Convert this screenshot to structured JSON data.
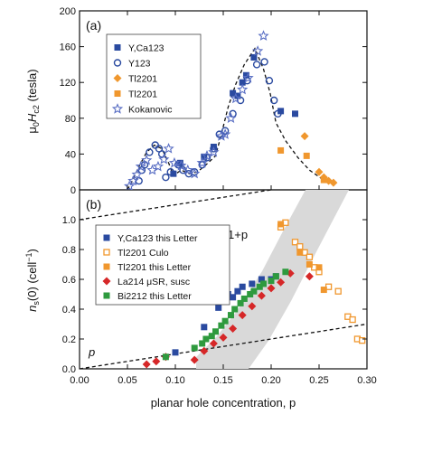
{
  "chart_data": [
    {
      "panel": "(a)",
      "type": "scatter",
      "ylabel_parts": [
        "μ",
        "0",
        "H",
        "c2",
        " (tesla)"
      ],
      "xlim": [
        0.0,
        0.3
      ],
      "ylim": [
        0,
        200
      ],
      "yticks": [
        "0",
        "40",
        "80",
        "120",
        "160",
        "200"
      ],
      "legend": [
        "Y,Ca123",
        "Y123",
        "Tl2201",
        "Tl2201",
        "Kokanovic"
      ],
      "guide_line": [
        [
          0.05,
          0
        ],
        [
          0.055,
          10
        ],
        [
          0.062,
          26
        ],
        [
          0.07,
          42
        ],
        [
          0.078,
          50
        ],
        [
          0.086,
          46
        ],
        [
          0.093,
          30
        ],
        [
          0.098,
          16
        ],
        [
          0.106,
          22
        ],
        [
          0.115,
          18
        ],
        [
          0.123,
          20
        ],
        [
          0.132,
          28
        ],
        [
          0.142,
          38
        ],
        [
          0.148,
          62
        ],
        [
          0.155,
          92
        ],
        [
          0.163,
          118
        ],
        [
          0.172,
          140
        ],
        [
          0.183,
          158
        ],
        [
          0.192,
          135
        ],
        [
          0.199,
          108
        ],
        [
          0.205,
          75
        ],
        [
          0.215,
          55
        ],
        [
          0.228,
          36
        ],
        [
          0.24,
          22
        ],
        [
          0.252,
          13
        ],
        [
          0.262,
          8
        ]
      ],
      "series": [
        {
          "name": "Y,Ca123",
          "color": "#2a4aa0",
          "marker": "square",
          "points": [
            [
              0.098,
              18
            ],
            [
              0.105,
              30
            ],
            [
              0.13,
              37
            ],
            [
              0.14,
              48
            ],
            [
              0.16,
              108
            ],
            [
              0.165,
              105
            ],
            [
              0.17,
              120
            ],
            [
              0.174,
              128
            ],
            [
              0.182,
              148
            ],
            [
              0.21,
              88
            ],
            [
              0.225,
              85
            ]
          ]
        },
        {
          "name": "Y123",
          "color": "#2a4aa0",
          "marker": "circle",
          "points": [
            [
              0.062,
              10
            ],
            [
              0.065,
              22
            ],
            [
              0.068,
              28
            ],
            [
              0.073,
              42
            ],
            [
              0.079,
              50
            ],
            [
              0.083,
              46
            ],
            [
              0.086,
              40
            ],
            [
              0.09,
              14
            ],
            [
              0.095,
              20
            ],
            [
              0.103,
              28
            ],
            [
              0.108,
              22
            ],
            [
              0.114,
              18
            ],
            [
              0.12,
              20
            ],
            [
              0.128,
              28
            ],
            [
              0.133,
              36
            ],
            [
              0.14,
              46
            ],
            [
              0.146,
              62
            ],
            [
              0.152,
              66
            ],
            [
              0.16,
              85
            ],
            [
              0.168,
              100
            ],
            [
              0.175,
              122
            ],
            [
              0.185,
              140
            ],
            [
              0.193,
              143
            ],
            [
              0.198,
              122
            ],
            [
              0.203,
              100
            ],
            [
              0.207,
              85
            ]
          ]
        },
        {
          "name": "Tl2201",
          "color": "#f0972e",
          "marker": "diamond",
          "points": [
            [
              0.235,
              60
            ],
            [
              0.25,
              20
            ],
            [
              0.255,
              14
            ],
            [
              0.26,
              10
            ],
            [
              0.265,
              8
            ]
          ]
        },
        {
          "name": "Tl2201",
          "color": "#f0972e",
          "marker": "square",
          "points": [
            [
              0.21,
              44
            ],
            [
              0.237,
              38
            ],
            [
              0.255,
              11
            ]
          ]
        },
        {
          "name": "Kokanovic",
          "color": "#5a6fc4",
          "marker": "star",
          "points": [
            [
              0.052,
              4
            ],
            [
              0.056,
              10
            ],
            [
              0.06,
              17
            ],
            [
              0.064,
              26
            ],
            [
              0.07,
              33
            ],
            [
              0.076,
              22
            ],
            [
              0.082,
              26
            ],
            [
              0.088,
              34
            ],
            [
              0.093,
              46
            ],
            [
              0.099,
              30
            ],
            [
              0.106,
              27
            ],
            [
              0.113,
              22
            ],
            [
              0.12,
              18
            ],
            [
              0.128,
              30
            ],
            [
              0.133,
              38
            ],
            [
              0.14,
              42
            ],
            [
              0.148,
              60
            ],
            [
              0.152,
              62
            ],
            [
              0.158,
              80
            ],
            [
              0.163,
              102
            ],
            [
              0.17,
              112
            ],
            [
              0.176,
              125
            ],
            [
              0.186,
              155
            ],
            [
              0.192,
              172
            ]
          ]
        }
      ]
    },
    {
      "panel": "(b)",
      "type": "scatter",
      "ylabel_parts": [
        "n",
        "s",
        "(0)  (cell",
        "−1",
        ")"
      ],
      "xlabel": "planar hole concentration, p",
      "xlim": [
        0.0,
        0.3
      ],
      "ylim": [
        0.0,
        1.2
      ],
      "xticks": [
        "0.00",
        "0.05",
        "0.10",
        "0.15",
        "0.20",
        "0.25",
        "0.30"
      ],
      "yticks": [
        "0.0",
        "0.2",
        "0.4",
        "0.6",
        "0.8",
        "1.0"
      ],
      "line_labels": [
        "1+p",
        "p"
      ],
      "legend": [
        "Y,Ca123 this Letter",
        "Tl2201 Culo",
        "Tl2201 this Letter",
        "La214 μSR, susc",
        "Bi2212 this Letter"
      ],
      "series": [
        {
          "name": "Y,Ca123 this Letter",
          "color": "#2a4aa0",
          "marker": "square",
          "points": [
            [
              0.1,
              0.11
            ],
            [
              0.13,
              0.28
            ],
            [
              0.145,
              0.41
            ],
            [
              0.15,
              0.46
            ],
            [
              0.155,
              0.5
            ],
            [
              0.16,
              0.48
            ],
            [
              0.165,
              0.52
            ],
            [
              0.17,
              0.55
            ],
            [
              0.18,
              0.57
            ],
            [
              0.19,
              0.6
            ],
            [
              0.2,
              0.6
            ],
            [
              0.205,
              0.62
            ]
          ]
        },
        {
          "name": "Tl2201 Culo",
          "color": "#f0972e",
          "marker": "square-open",
          "points": [
            [
              0.21,
              0.95
            ],
            [
              0.215,
              0.98
            ],
            [
              0.225,
              0.85
            ],
            [
              0.23,
              0.82
            ],
            [
              0.235,
              0.78
            ],
            [
              0.24,
              0.75
            ],
            [
              0.245,
              0.68
            ],
            [
              0.25,
              0.65
            ],
            [
              0.26,
              0.55
            ],
            [
              0.27,
              0.52
            ],
            [
              0.28,
              0.35
            ],
            [
              0.285,
              0.33
            ],
            [
              0.29,
              0.2
            ],
            [
              0.295,
              0.19
            ]
          ]
        },
        {
          "name": "Tl2201 this Letter",
          "color": "#f0972e",
          "marker": "square",
          "points": [
            [
              0.21,
              0.97
            ],
            [
              0.23,
              0.78
            ],
            [
              0.24,
              0.7
            ],
            [
              0.25,
              0.68
            ],
            [
              0.255,
              0.53
            ]
          ]
        },
        {
          "name": "La214 μSR, susc",
          "color": "#d62728",
          "marker": "diamond",
          "points": [
            [
              0.07,
              0.03
            ],
            [
              0.08,
              0.05
            ],
            [
              0.09,
              0.08
            ],
            [
              0.12,
              0.06
            ],
            [
              0.13,
              0.12
            ],
            [
              0.14,
              0.17
            ],
            [
              0.15,
              0.21
            ],
            [
              0.16,
              0.27
            ],
            [
              0.17,
              0.36
            ],
            [
              0.18,
              0.42
            ],
            [
              0.19,
              0.49
            ],
            [
              0.2,
              0.54
            ],
            [
              0.21,
              0.58
            ],
            [
              0.22,
              0.64
            ],
            [
              0.24,
              0.62
            ]
          ]
        },
        {
          "name": "Bi2212 this Letter",
          "color": "#2e9a3e",
          "marker": "square",
          "points": [
            [
              0.09,
              0.08
            ],
            [
              0.12,
              0.14
            ],
            [
              0.128,
              0.17
            ],
            [
              0.132,
              0.2
            ],
            [
              0.138,
              0.22
            ],
            [
              0.142,
              0.25
            ],
            [
              0.148,
              0.29
            ],
            [
              0.152,
              0.32
            ],
            [
              0.158,
              0.36
            ],
            [
              0.162,
              0.4
            ],
            [
              0.168,
              0.44
            ],
            [
              0.172,
              0.47
            ],
            [
              0.178,
              0.5
            ],
            [
              0.182,
              0.52
            ],
            [
              0.188,
              0.55
            ],
            [
              0.192,
              0.57
            ],
            [
              0.2,
              0.59
            ],
            [
              0.205,
              0.62
            ],
            [
              0.215,
              0.65
            ]
          ]
        }
      ]
    }
  ]
}
